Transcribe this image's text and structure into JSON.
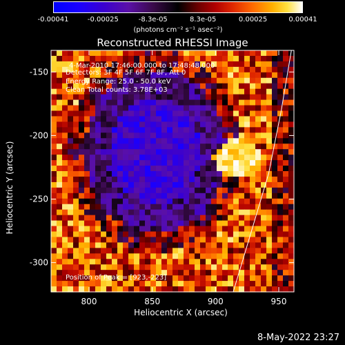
{
  "colorbar": {
    "ticks": [
      "-0.00041",
      "-0.00025",
      "-8.3e-05",
      "8.3e-05",
      "0.00025",
      "0.00041"
    ],
    "label": "(photons cm⁻² s⁻¹ asec⁻²)"
  },
  "annotations": {
    "time": "4-Mar-2010 17:46:00.000 to 17:48:48.000",
    "detectors": "Detectors: 3F 4F 5F 6F 7F 8F, Att 0",
    "energy": "Energy Range: 25.0 - 50.0 keV",
    "clean": "Clean    Total counts: 3.78E+03",
    "peak": "Position of Peak = [923,-223]"
  },
  "footer": "8-May-2022 23:27",
  "chart_data": {
    "type": "heatmap",
    "title": "Reconstructed RHESSI Image",
    "xlabel": "Heliocentric X (arcsec)",
    "ylabel": "Heliocentric Y (arcsec)",
    "xlim": [
      770,
      962
    ],
    "ylim": [
      -323,
      -133
    ],
    "x_ticks": [
      800,
      850,
      900,
      950
    ],
    "y_ticks": [
      -150,
      -200,
      -250,
      -300
    ],
    "colorbar_range": [
      -0.00041,
      0.00041
    ],
    "peak": {
      "x": 923,
      "y": -223
    },
    "limb_curve": [
      [
        914,
        -323
      ],
      [
        927,
        -280
      ],
      [
        942,
        -230
      ],
      [
        952,
        -180
      ],
      [
        960,
        -133
      ]
    ]
  }
}
